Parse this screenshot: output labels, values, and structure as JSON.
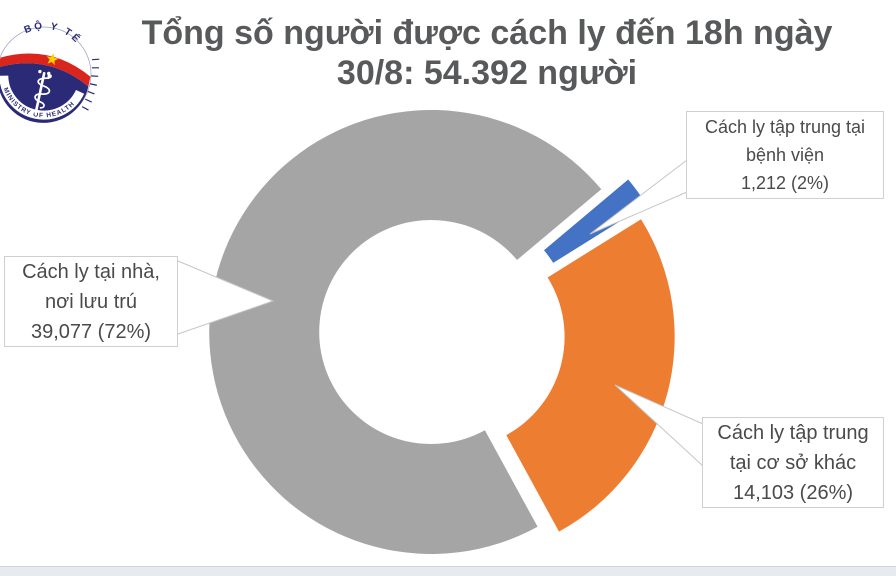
{
  "logo": {
    "arc_text_top": "BỘ Y TẾ",
    "arc_text_bottom": "MINISTRY OF HEALTH",
    "colors": {
      "navy": "#2b2a77",
      "red": "#da251d",
      "star_yellow": "#ffcd00"
    }
  },
  "title": {
    "line1": "Tổng số người được cách ly đến 18h ngày",
    "line2": "30/8: 54.392 người",
    "color": "#58595b"
  },
  "chart_data": {
    "type": "pie",
    "subtype": "exploded-doughnut",
    "title": "Tổng số người được cách ly đến 18h ngày 30/8: 54.392 người",
    "total": 54392,
    "unit": "người",
    "categories": [
      "Cách ly tập trung tại bệnh viện",
      "Cách ly tập trung tại cơ sở khác",
      "Cách ly tại nhà, nơi lưu trú"
    ],
    "values": [
      1212,
      14103,
      39077
    ],
    "percents": [
      2,
      26,
      72
    ],
    "colors": [
      "#4472c4",
      "#ed7d31",
      "#a5a5a5"
    ],
    "start_angle_deg": 50,
    "clockwise": true,
    "hole_radius_ratio": 0.505,
    "legend_position": "data-callouts",
    "grid": false
  },
  "callouts": [
    {
      "lines": [
        "Cách ly tập trung tại",
        "bệnh viện",
        "1,212 (2%)"
      ]
    },
    {
      "lines": [
        "Cách ly tập trung",
        "tại cơ sở khác",
        "14,103 (26%)"
      ]
    },
    {
      "lines": [
        "Cách ly tại nhà,",
        "nơi lưu trú",
        "39,077 (72%)"
      ]
    }
  ]
}
